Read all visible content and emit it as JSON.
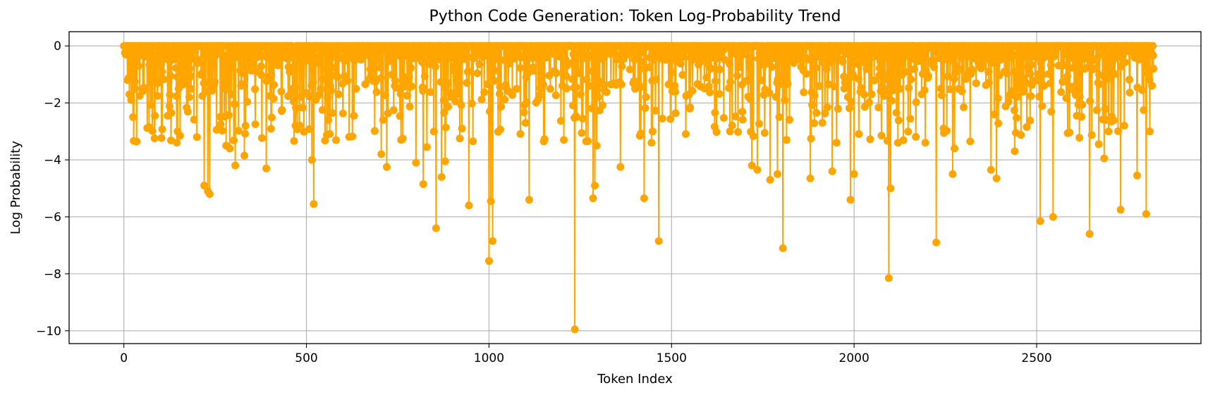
{
  "chart_data": {
    "type": "line",
    "title": "Python Code Generation: Token Log-Probability Trend",
    "xlabel": "Token Index",
    "ylabel": "Log Probability",
    "xlim": [
      -150,
      2950
    ],
    "ylim": [
      -10.45,
      0.5
    ],
    "xticks": [
      0,
      500,
      1000,
      1500,
      2000,
      2500
    ],
    "yticks": [
      0,
      -2,
      -4,
      -6,
      -8,
      -10
    ],
    "grid": true,
    "color": "#FFA500",
    "marker": "circle",
    "n_tokens": 2820,
    "series": [
      {
        "name": "log_probability",
        "x": [
          0,
          5,
          10,
          15,
          20,
          25,
          30,
          40,
          50,
          60,
          85,
          90,
          120,
          130,
          150,
          160,
          200,
          220,
          230,
          235,
          265,
          280,
          290,
          305,
          330,
          360,
          390,
          410,
          470,
          515,
          520,
          525,
          560,
          630,
          690,
          705,
          710,
          720,
          800,
          820,
          830,
          855,
          870,
          880,
          945,
          1000,
          1002,
          1005,
          1010,
          1100,
          1110,
          1205,
          1235,
          1240,
          1285,
          1290,
          1295,
          1360,
          1425,
          1445,
          1465,
          1475,
          1550,
          1660,
          1720,
          1735,
          1770,
          1790,
          1805,
          1815,
          1880,
          1940,
          1990,
          2000,
          2075,
          2095,
          2100,
          2120,
          2195,
          2225,
          2245,
          2270,
          2275,
          2300,
          2375,
          2390,
          2440,
          2510,
          2520,
          2545,
          2610,
          2645,
          2670,
          2685,
          2690,
          2730,
          2740,
          2775,
          2800,
          2810,
          2820
        ],
        "y": [
          0,
          -0.3,
          -1.2,
          -1.7,
          -1.9,
          -2.5,
          -1.25,
          -0.7,
          -0.3,
          0,
          -2.45,
          -1.2,
          -2.45,
          -2.35,
          -1.5,
          -0.5,
          -3.2,
          -4.9,
          -5.1,
          -5.2,
          -2.75,
          -3.5,
          -3.6,
          -4.2,
          -3.85,
          -2.75,
          -4.3,
          -1.85,
          -2.8,
          -4.0,
          -5.55,
          -1.9,
          -2.6,
          -2.45,
          -1.25,
          -3.8,
          -2.6,
          -4.25,
          -4.1,
          -4.85,
          -3.55,
          -6.4,
          -4.6,
          -4.05,
          -5.6,
          -7.55,
          -2.3,
          -5.45,
          -6.85,
          -2.7,
          -5.4,
          -3.3,
          -9.95,
          -2.5,
          -5.35,
          -4.9,
          -3.5,
          -4.25,
          -5.35,
          -3.4,
          -6.85,
          -2.55,
          -2.2,
          -3.0,
          -4.2,
          -4.35,
          -4.7,
          -4.5,
          -7.1,
          -3.3,
          -4.65,
          -4.4,
          -5.4,
          -4.5,
          -3.15,
          -8.15,
          -5.0,
          -3.4,
          -3.4,
          -6.9,
          -2.9,
          -4.5,
          -3.6,
          -2.15,
          -4.35,
          -4.65,
          -3.7,
          -6.15,
          -1.4,
          -6.0,
          -2.45,
          -6.6,
          -3.45,
          -3.95,
          -2.6,
          -5.75,
          -2.8,
          -4.55,
          -5.9,
          -3.0,
          -0.8
        ]
      }
    ]
  }
}
